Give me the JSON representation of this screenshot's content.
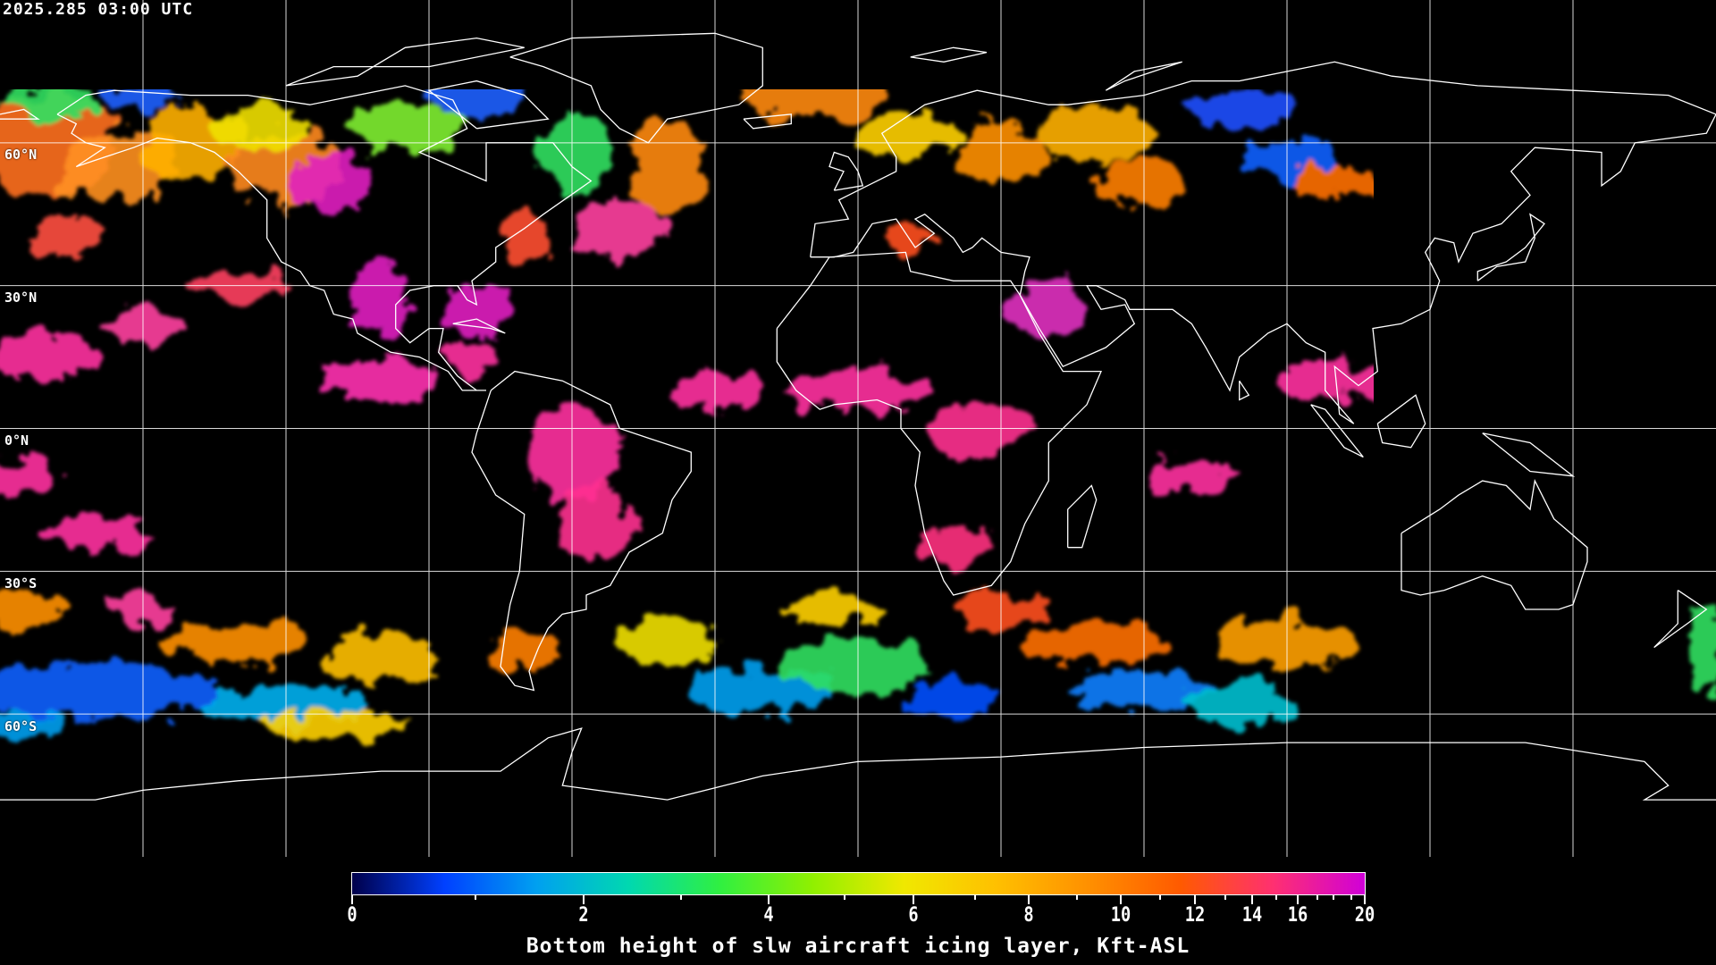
{
  "header": {
    "timestamp": "2025.285 03:00 UTC"
  },
  "map": {
    "projection": "equirectangular",
    "lon_range": [
      -180,
      180
    ],
    "lat_range": [
      -90,
      90
    ],
    "graticule_step_deg": 30,
    "lat_labels": [
      "60°N",
      "30°N",
      "0°N",
      "30°S",
      "60°S"
    ],
    "background": "#000000",
    "coastline_color": "#ffffff",
    "grid_color": "#ffffff"
  },
  "colorbar": {
    "title": "Bottom height of slw aircraft icing layer, Kft-ASL",
    "min": 0,
    "max": 20,
    "tick_labels": [
      "0",
      "2",
      "4",
      "6",
      "8",
      "10",
      "12",
      "14",
      "16",
      "20"
    ],
    "colors": [
      "#00004a",
      "#0040ff",
      "#00a0f0",
      "#00d8b0",
      "#30f040",
      "#90f000",
      "#f0e800",
      "#ffc000",
      "#ff9000",
      "#ff5a00",
      "#ff3070",
      "#d000d8"
    ]
  }
}
